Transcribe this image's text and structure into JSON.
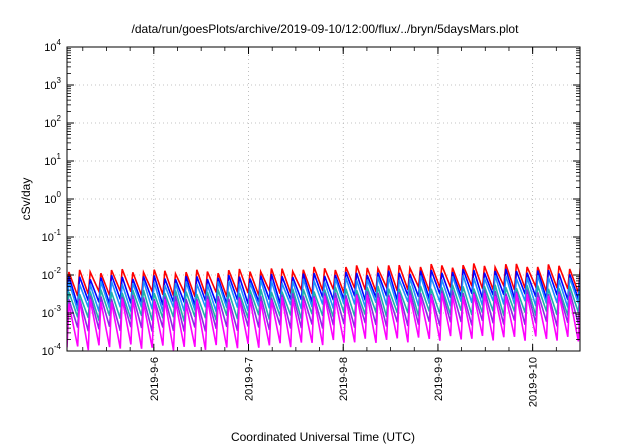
{
  "chart_data": {
    "type": "line",
    "title": "/data/run/goesPlots/archive/2019-09-10/12:00/flux/../bryn/5daysMars.plot",
    "xlabel": "Coordinated Universal Time (UTC)",
    "ylabel": "cSv/day",
    "yscale": "log",
    "ylim": [
      0.0001,
      10000
    ],
    "xlim": [
      "2019-09-05T02:00",
      "2019-09-10T12:00"
    ],
    "grid": true,
    "legend": "none",
    "x_tick_labels": [
      "2019-9-6",
      "2019-9-7",
      "2019-9-8",
      "2019-9-9",
      "2019-9-10"
    ],
    "x_ticks": [
      "2019-09-06T00:00",
      "2019-09-07T00:00",
      "2019-09-08T00:00",
      "2019-09-09T00:00",
      "2019-09-10T00:00"
    ],
    "y_ticks": [
      0.0001,
      0.001,
      0.01,
      0.1,
      1,
      10,
      100,
      1000,
      10000
    ],
    "y_tick_labels": [
      {
        "base": "10",
        "exp": "-4"
      },
      {
        "base": "10",
        "exp": "-3"
      },
      {
        "base": "10",
        "exp": "-2"
      },
      {
        "base": "10",
        "exp": "-1"
      },
      {
        "base": "10",
        "exp": "0"
      },
      {
        "base": "10",
        "exp": "1"
      },
      {
        "base": "10",
        "exp": "2"
      },
      {
        "base": "10",
        "exp": "3"
      },
      {
        "base": "10",
        "exp": "4"
      }
    ],
    "sawtooth_period_hours": 2.7,
    "series": [
      {
        "color": "#ff0000",
        "peaks": [
          0.012,
          0.013,
          0.012,
          0.013,
          0.014,
          0.016,
          0.017,
          0.018,
          0.018,
          0.016
        ],
        "troughs": [
          0.003,
          0.0035,
          0.003,
          0.0032,
          0.0035,
          0.004,
          0.0042,
          0.0045,
          0.0045,
          0.004
        ]
      },
      {
        "color": "#0000ff",
        "peaks": [
          0.0085,
          0.009,
          0.0085,
          0.009,
          0.01,
          0.011,
          0.012,
          0.013,
          0.013,
          0.011
        ],
        "troughs": [
          0.0018,
          0.002,
          0.0018,
          0.0019,
          0.0021,
          0.0024,
          0.0026,
          0.0028,
          0.0028,
          0.0024
        ]
      },
      {
        "color": "#1e90ff",
        "peaks": [
          0.006,
          0.0065,
          0.006,
          0.0065,
          0.007,
          0.008,
          0.0085,
          0.009,
          0.009,
          0.008
        ],
        "troughs": [
          0.0012,
          0.0013,
          0.0012,
          0.0013,
          0.0014,
          0.0016,
          0.0017,
          0.0018,
          0.0018,
          0.0016
        ]
      },
      {
        "color": "#20b2aa",
        "peaks": [
          0.0035,
          0.0038,
          0.0035,
          0.0038,
          0.004,
          0.0045,
          0.0048,
          0.005,
          0.005,
          0.0045
        ],
        "troughs": [
          0.0007,
          0.00075,
          0.0007,
          0.00075,
          0.0008,
          0.0009,
          0.00095,
          0.001,
          0.001,
          0.0009
        ]
      },
      {
        "color": "#8a2be2",
        "peaks": [
          0.0025,
          0.0027,
          0.0025,
          0.0027,
          0.003,
          0.0033,
          0.0035,
          0.0037,
          0.0037,
          0.0033
        ],
        "troughs": [
          0.00035,
          0.0004,
          0.00035,
          0.0004,
          0.00042,
          0.00048,
          0.0005,
          0.00055,
          0.00055,
          0.0005
        ]
      },
      {
        "color": "#ff00ff",
        "peaks": [
          0.002,
          0.0022,
          0.002,
          0.0022,
          0.0024,
          0.0027,
          0.0029,
          0.003,
          0.003,
          0.0027
        ],
        "troughs": [
          0.00012,
          0.00013,
          0.00012,
          0.00013,
          0.00015,
          0.00018,
          0.0002,
          0.00022,
          0.00022,
          0.0002
        ]
      }
    ]
  }
}
